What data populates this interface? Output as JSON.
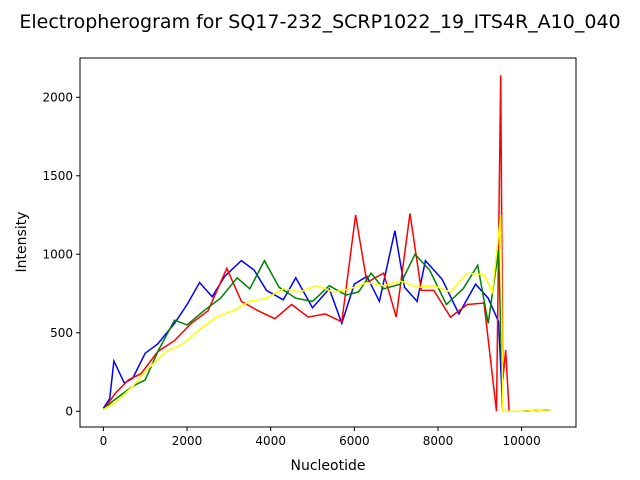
{
  "chart_data": {
    "type": "line",
    "title": "Electropherogram for SQ17-232_SCRP1022_19_ITS4R_A10_040",
    "xlabel": "Nucleotide",
    "ylabel": "Intensity",
    "xlim": [
      -560,
      11300
    ],
    "ylim": [
      -100,
      2250
    ],
    "xticks": [
      0,
      2000,
      4000,
      6000,
      8000,
      10000
    ],
    "yticks": [
      0,
      500,
      1000,
      1500,
      2000
    ],
    "grid": false,
    "legend": "none",
    "series": [
      {
        "color": "#0000ff",
        "x": [
          0,
          150,
          250,
          500,
          700,
          1000,
          1300,
          1700,
          2000,
          2300,
          2600,
          2900,
          3300,
          3600,
          3900,
          4300,
          4600,
          5000,
          5400,
          5700,
          6000,
          6300,
          6600,
          6970,
          7200,
          7500,
          7700,
          8100,
          8500,
          8900,
          9200,
          9450,
          9550,
          10000,
          10700
        ],
        "values": [
          20,
          80,
          320,
          180,
          210,
          370,
          430,
          560,
          680,
          820,
          730,
          860,
          960,
          900,
          770,
          710,
          850,
          660,
          780,
          560,
          810,
          860,
          700,
          1150,
          790,
          700,
          960,
          840,
          620,
          810,
          720,
          570,
          0,
          0,
          10
        ]
      },
      {
        "color": "#ff0000",
        "x": [
          0,
          300,
          600,
          900,
          1300,
          1700,
          2100,
          2500,
          2950,
          3300,
          3700,
          4100,
          4500,
          4900,
          5300,
          5700,
          6030,
          6300,
          6700,
          7000,
          7330,
          7600,
          7900,
          8300,
          8700,
          9100,
          9400,
          9500,
          9550,
          9620,
          9700,
          10000,
          10700
        ],
        "values": [
          10,
          120,
          200,
          240,
          380,
          450,
          560,
          640,
          910,
          700,
          640,
          590,
          680,
          600,
          620,
          570,
          1250,
          820,
          880,
          600,
          1260,
          770,
          770,
          600,
          680,
          690,
          0,
          2140,
          200,
          390,
          0,
          0,
          10
        ]
      },
      {
        "color": "#008000",
        "x": [
          0,
          200,
          400,
          700,
          1000,
          1300,
          1700,
          2000,
          2400,
          2800,
          3200,
          3500,
          3850,
          4200,
          4600,
          5000,
          5400,
          5800,
          6100,
          6400,
          6700,
          7100,
          7450,
          7800,
          8200,
          8600,
          8950,
          9200,
          9450,
          9550,
          10000,
          10700
        ],
        "values": [
          10,
          60,
          100,
          160,
          200,
          380,
          580,
          550,
          640,
          720,
          850,
          780,
          960,
          790,
          720,
          700,
          800,
          740,
          760,
          880,
          780,
          810,
          1000,
          900,
          680,
          780,
          930,
          560,
          1030,
          0,
          0,
          10
        ]
      },
      {
        "color": "#ffff00",
        "x": [
          0,
          300,
          700,
          1100,
          1500,
          1900,
          2300,
          2700,
          3100,
          3500,
          3900,
          4300,
          4700,
          5100,
          5500,
          5900,
          6300,
          6700,
          7100,
          7500,
          7900,
          8300,
          8700,
          9100,
          9300,
          9500,
          9550,
          9700,
          10000,
          10700
        ],
        "values": [
          10,
          60,
          160,
          280,
          380,
          430,
          520,
          600,
          640,
          700,
          720,
          780,
          760,
          800,
          760,
          780,
          820,
          800,
          830,
          790,
          800,
          760,
          880,
          870,
          760,
          1250,
          0,
          0,
          0,
          10
        ]
      }
    ]
  }
}
